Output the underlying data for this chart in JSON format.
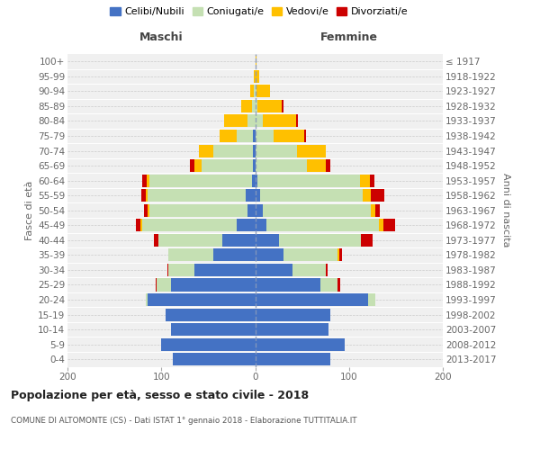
{
  "age_groups": [
    "0-4",
    "5-9",
    "10-14",
    "15-19",
    "20-24",
    "25-29",
    "30-34",
    "35-39",
    "40-44",
    "45-49",
    "50-54",
    "55-59",
    "60-64",
    "65-69",
    "70-74",
    "75-79",
    "80-84",
    "85-89",
    "90-94",
    "95-99",
    "100+"
  ],
  "birth_years": [
    "2013-2017",
    "2008-2012",
    "2003-2007",
    "1998-2002",
    "1993-1997",
    "1988-1992",
    "1983-1987",
    "1978-1982",
    "1973-1977",
    "1968-1972",
    "1963-1967",
    "1958-1962",
    "1953-1957",
    "1948-1952",
    "1943-1947",
    "1938-1942",
    "1933-1937",
    "1928-1932",
    "1923-1927",
    "1918-1922",
    "≤ 1917"
  ],
  "male_celibi": [
    88,
    100,
    90,
    95,
    115,
    90,
    65,
    45,
    35,
    20,
    8,
    10,
    3,
    2,
    2,
    2,
    0,
    0,
    0,
    0,
    0
  ],
  "male_coniugati": [
    0,
    0,
    0,
    0,
    2,
    15,
    28,
    48,
    68,
    100,
    105,
    105,
    110,
    55,
    43,
    18,
    8,
    3,
    1,
    0,
    0
  ],
  "male_vedovi": [
    0,
    0,
    0,
    0,
    0,
    0,
    0,
    0,
    0,
    2,
    2,
    2,
    3,
    8,
    15,
    18,
    25,
    12,
    4,
    1,
    0
  ],
  "male_divorziati": [
    0,
    0,
    0,
    0,
    0,
    1,
    1,
    0,
    5,
    5,
    3,
    4,
    4,
    5,
    0,
    0,
    0,
    0,
    0,
    0,
    0
  ],
  "female_celibi": [
    80,
    95,
    78,
    80,
    120,
    70,
    40,
    30,
    25,
    12,
    8,
    5,
    2,
    0,
    0,
    0,
    0,
    0,
    0,
    0,
    0
  ],
  "female_coniugati": [
    0,
    0,
    0,
    0,
    8,
    18,
    35,
    58,
    88,
    120,
    115,
    110,
    110,
    55,
    45,
    20,
    8,
    2,
    1,
    0,
    0
  ],
  "female_vedovi": [
    0,
    0,
    0,
    0,
    0,
    0,
    0,
    2,
    0,
    5,
    5,
    8,
    10,
    20,
    30,
    32,
    36,
    26,
    15,
    4,
    1
  ],
  "female_divorziati": [
    0,
    0,
    0,
    0,
    0,
    3,
    2,
    3,
    12,
    12,
    5,
    15,
    5,
    5,
    0,
    2,
    2,
    2,
    0,
    0,
    0
  ],
  "colors": {
    "celibi": "#4472c4",
    "coniugati": "#c5e0b3",
    "vedovi": "#ffc000",
    "divorziati": "#cc0000"
  },
  "legend_labels": [
    "Celibi/Nubili",
    "Coniugati/e",
    "Vedovi/e",
    "Divorziati/e"
  ],
  "title": "Popolazione per età, sesso e stato civile - 2018",
  "subtitle": "COMUNE DI ALTOMONTE (CS) - Dati ISTAT 1° gennaio 2018 - Elaborazione TUTTITALIA.IT",
  "label_maschi": "Maschi",
  "label_femmine": "Femmine",
  "ylabel_left": "Fasce di età",
  "ylabel_right": "Anni di nascita",
  "xlim": 200,
  "bg_color": "#f0f0f0"
}
